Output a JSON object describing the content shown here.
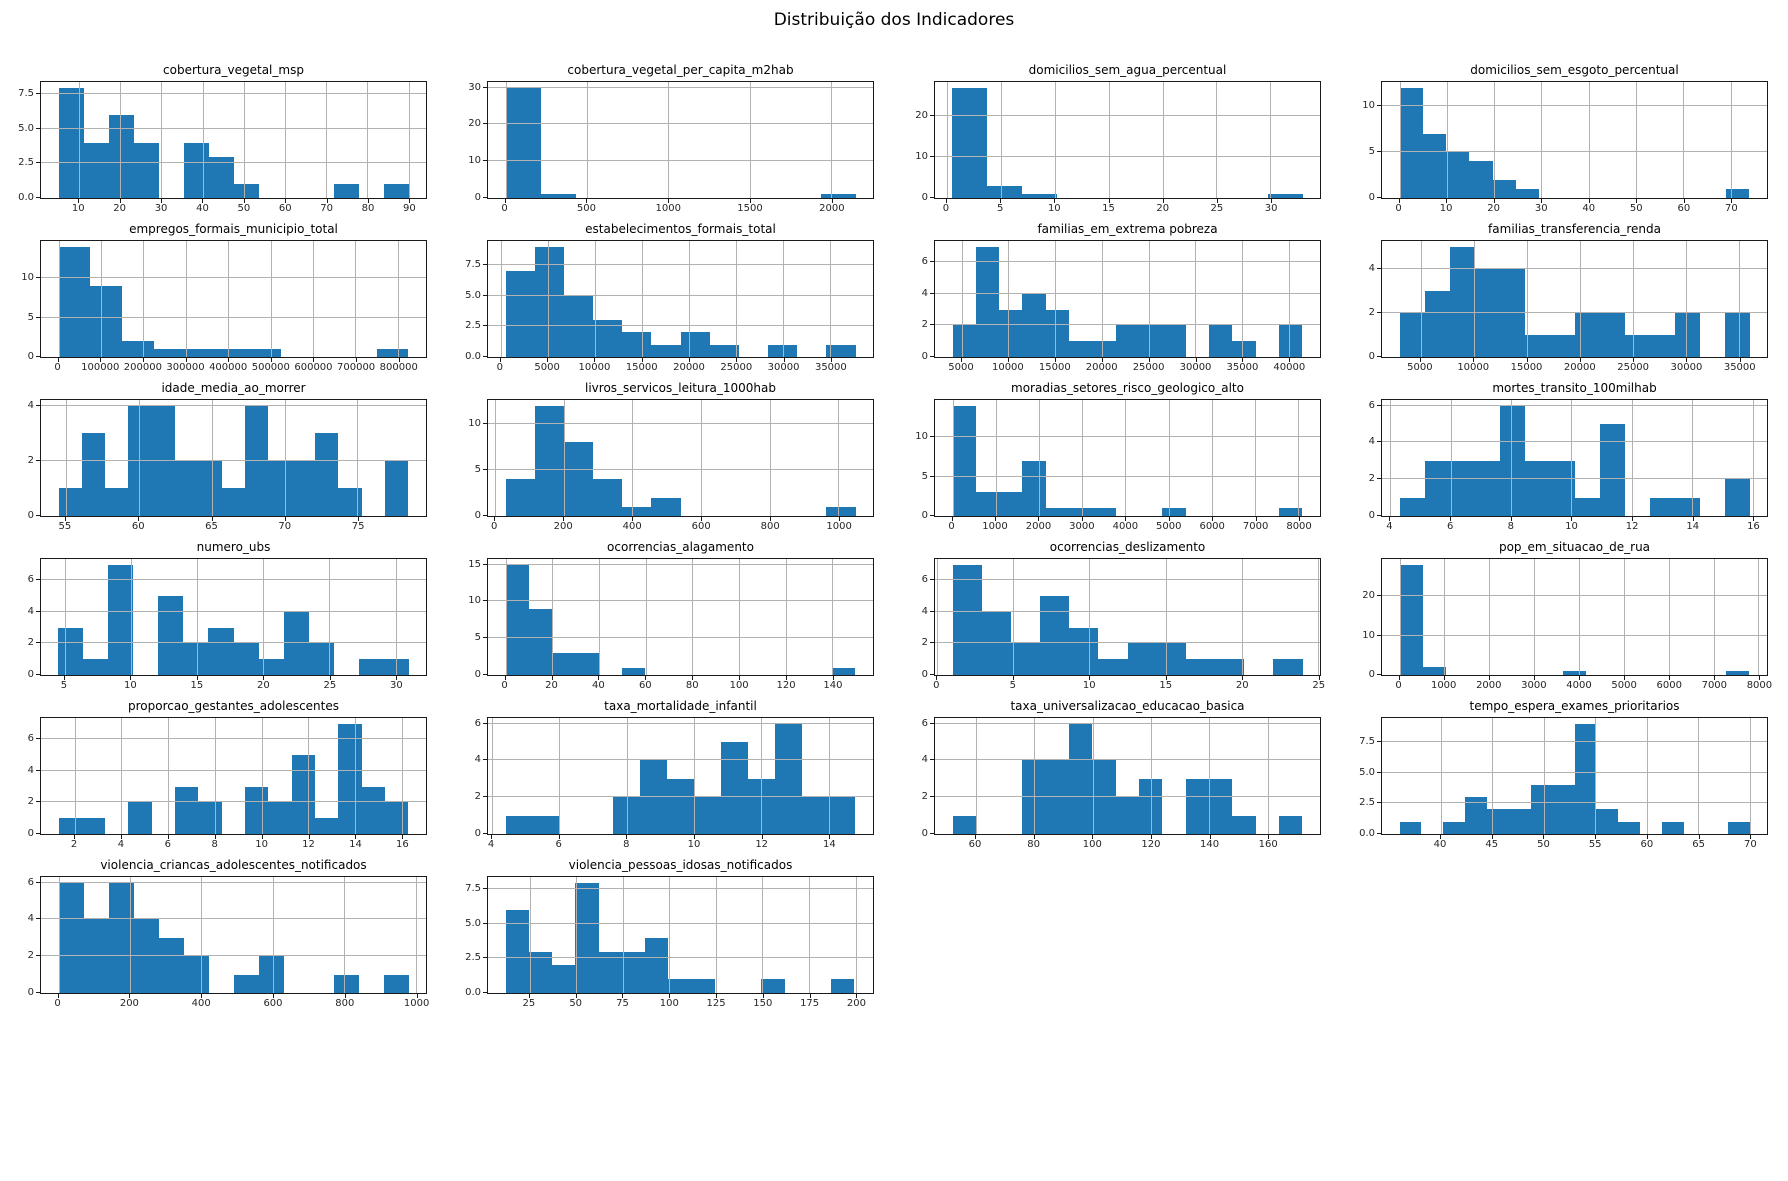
{
  "suptitle": "Distribuição dos Indicadores",
  "colors": {
    "bar": "#1f77b4",
    "grid": "#b2b2b2",
    "spine": "#1a1a1a",
    "text": "#262626"
  },
  "chart_data": [
    {
      "type": "bar",
      "title": "cobertura_vegetal_msp",
      "heights": [
        8,
        4,
        6,
        4,
        0,
        4,
        3,
        1,
        0,
        0,
        0,
        1,
        0,
        1
      ],
      "bar_range": [
        5,
        90
      ],
      "xlim": [
        0.75,
        94.25
      ],
      "xticks": [
        10,
        20,
        30,
        40,
        50,
        60,
        70,
        80,
        90
      ],
      "ylim": [
        0,
        8.4
      ],
      "yticks": [
        0,
        2.5,
        5,
        7.5
      ],
      "ytick_labels": [
        "0.0",
        "2.5",
        "5.0",
        "7.5"
      ]
    },
    {
      "type": "bar",
      "title": "cobertura_vegetal_per_capita_m2hab",
      "heights": [
        30,
        1,
        0,
        0,
        0,
        0,
        0,
        0,
        0,
        1
      ],
      "bar_range": [
        0,
        2150
      ],
      "xlim": [
        -107.5,
        2257.5
      ],
      "xticks": [
        0,
        500,
        1000,
        1500,
        2000
      ],
      "ylim": [
        0,
        31.5
      ],
      "yticks": [
        0,
        10,
        20,
        30
      ],
      "ytick_labels": [
        "0",
        "10",
        "20",
        "30"
      ]
    },
    {
      "type": "bar",
      "title": "domicilios_sem_agua_percentual",
      "heights": [
        27,
        3,
        1,
        0,
        0,
        0,
        0,
        0,
        0,
        1
      ],
      "bar_range": [
        0.5,
        33
      ],
      "xlim": [
        -1.1,
        34.6
      ],
      "xticks": [
        0,
        5,
        10,
        15,
        20,
        25,
        30
      ],
      "ylim": [
        0,
        28.35
      ],
      "yticks": [
        0,
        10,
        20
      ],
      "ytick_labels": [
        "0",
        "10",
        "20"
      ]
    },
    {
      "type": "bar",
      "title": "domicilios_sem_esgoto_percentual",
      "heights": [
        12,
        7,
        5,
        4,
        2,
        1,
        0,
        0,
        0,
        0,
        0,
        0,
        0,
        0,
        1
      ],
      "bar_range": [
        0,
        74
      ],
      "xlim": [
        -3.7,
        77.7
      ],
      "xticks": [
        0,
        10,
        20,
        30,
        40,
        50,
        60,
        70
      ],
      "ylim": [
        0,
        12.6
      ],
      "yticks": [
        0,
        5,
        10
      ],
      "ytick_labels": [
        "0",
        "5",
        "10"
      ]
    },
    {
      "type": "bar",
      "title": "empregos_formais_municipio_total",
      "heights": [
        14,
        9,
        2,
        1,
        1,
        1,
        1,
        0,
        0,
        0,
        1
      ],
      "bar_range": [
        0,
        825000
      ],
      "xlim": [
        -41250,
        866250
      ],
      "xticks": [
        0,
        100000,
        200000,
        300000,
        400000,
        500000,
        600000,
        700000,
        800000
      ],
      "ylim": [
        0,
        14.7
      ],
      "yticks": [
        0,
        5,
        10
      ],
      "ytick_labels": [
        "0",
        "5",
        "10"
      ]
    },
    {
      "type": "bar",
      "title": "estabelecimentos_formais_total",
      "heights": [
        7,
        9,
        5,
        3,
        2,
        1,
        2,
        1,
        0,
        1,
        0,
        1
      ],
      "bar_range": [
        500,
        37700
      ],
      "xlim": [
        -1360,
        39560
      ],
      "xticks": [
        0,
        5000,
        10000,
        15000,
        20000,
        25000,
        30000,
        35000
      ],
      "ylim": [
        0,
        9.45
      ],
      "yticks": [
        0,
        2.5,
        5,
        7.5
      ],
      "ytick_labels": [
        "0.0",
        "2.5",
        "5.0",
        "7.5"
      ]
    },
    {
      "type": "bar",
      "title": "familias_em_extrema pobreza",
      "heights": [
        2,
        7,
        3,
        4,
        3,
        1,
        1,
        2,
        2,
        2,
        0,
        2,
        1,
        0,
        2
      ],
      "bar_range": [
        4000,
        41500
      ],
      "xlim": [
        2125,
        43375
      ],
      "xticks": [
        5000,
        10000,
        15000,
        20000,
        25000,
        30000,
        35000,
        40000
      ],
      "ylim": [
        0,
        7.35
      ],
      "yticks": [
        0,
        2,
        4,
        6
      ],
      "ytick_labels": [
        "0",
        "2",
        "4",
        "6"
      ]
    },
    {
      "type": "bar",
      "title": "familias_transferencia_renda",
      "heights": [
        2,
        3,
        5,
        4,
        4,
        1,
        1,
        2,
        2,
        1,
        1,
        2,
        0,
        2
      ],
      "bar_range": [
        3000,
        36000
      ],
      "xlim": [
        1350,
        37650
      ],
      "xticks": [
        5000,
        10000,
        15000,
        20000,
        25000,
        30000,
        35000
      ],
      "ylim": [
        0,
        5.25
      ],
      "yticks": [
        0,
        2,
        4
      ],
      "ytick_labels": [
        "0",
        "2",
        "4"
      ]
    },
    {
      "type": "bar",
      "title": "idade_media_ao_morrer",
      "heights": [
        1,
        3,
        1,
        4,
        4,
        2,
        2,
        1,
        4,
        2,
        2,
        3,
        1,
        0,
        2
      ],
      "bar_range": [
        54.5,
        78.5
      ],
      "xlim": [
        53.3,
        79.7
      ],
      "xticks": [
        55,
        60,
        65,
        70,
        75
      ],
      "ylim": [
        0,
        4.2
      ],
      "yticks": [
        0,
        2,
        4
      ],
      "ytick_labels": [
        "0",
        "2",
        "4"
      ]
    },
    {
      "type": "bar",
      "title": "livros_servicos_leitura_1000hab",
      "heights": [
        4,
        12,
        8,
        4,
        1,
        2,
        0,
        0,
        0,
        0,
        0,
        1
      ],
      "bar_range": [
        30,
        1050
      ],
      "xlim": [
        -21,
        1101
      ],
      "xticks": [
        0,
        200,
        400,
        600,
        800,
        1000
      ],
      "ylim": [
        0,
        12.6
      ],
      "yticks": [
        0,
        5,
        10
      ],
      "ytick_labels": [
        "0",
        "5",
        "10"
      ]
    },
    {
      "type": "bar",
      "title": "moradias_setores_risco_geologico_alto",
      "heights": [
        14,
        3,
        3,
        7,
        1,
        1,
        1,
        0,
        0,
        1,
        0,
        0,
        0,
        0,
        1
      ],
      "bar_range": [
        0,
        8100
      ],
      "xlim": [
        -405,
        8505
      ],
      "xticks": [
        0,
        1000,
        2000,
        3000,
        4000,
        5000,
        6000,
        7000,
        8000
      ],
      "ylim": [
        0,
        14.7
      ],
      "yticks": [
        0,
        5,
        10
      ],
      "ytick_labels": [
        "0",
        "5",
        "10"
      ]
    },
    {
      "type": "bar",
      "title": "mortes_transito_100milhab",
      "heights": [
        1,
        3,
        3,
        3,
        6,
        3,
        3,
        1,
        5,
        0,
        1,
        1,
        0,
        2
      ],
      "bar_range": [
        4.3,
        15.9
      ],
      "xlim": [
        3.72,
        16.48
      ],
      "xticks": [
        4,
        6,
        8,
        10,
        12,
        14,
        16
      ],
      "ylim": [
        0,
        6.3
      ],
      "yticks": [
        0,
        2,
        4,
        6
      ],
      "ytick_labels": [
        "0",
        "2",
        "4",
        "6"
      ]
    },
    {
      "type": "bar",
      "title": "numero_ubs",
      "heights": [
        3,
        1,
        7,
        0,
        5,
        2,
        3,
        2,
        1,
        4,
        2,
        0,
        1,
        1
      ],
      "bar_range": [
        4.5,
        31
      ],
      "xlim": [
        3.2,
        32.3
      ],
      "xticks": [
        5,
        10,
        15,
        20,
        25,
        30
      ],
      "ylim": [
        0,
        7.35
      ],
      "yticks": [
        0,
        2,
        4,
        6
      ],
      "ytick_labels": [
        "0",
        "2",
        "4",
        "6"
      ]
    },
    {
      "type": "bar",
      "title": "ocorrencias_alagamento",
      "heights": [
        15,
        9,
        3,
        3,
        0,
        1,
        0,
        0,
        0,
        0,
        0,
        0,
        0,
        0,
        1
      ],
      "bar_range": [
        0,
        150
      ],
      "xlim": [
        -7.5,
        157.5
      ],
      "xticks": [
        0,
        20,
        40,
        60,
        80,
        100,
        120,
        140
      ],
      "ylim": [
        0,
        15.75
      ],
      "yticks": [
        0,
        5,
        10,
        15
      ],
      "ytick_labels": [
        "0",
        "5",
        "10",
        "15"
      ]
    },
    {
      "type": "bar",
      "title": "ocorrencias_deslizamento",
      "heights": [
        7,
        4,
        2,
        5,
        3,
        1,
        2,
        2,
        1,
        1,
        0,
        1
      ],
      "bar_range": [
        1,
        24
      ],
      "xlim": [
        -0.15,
        25.15
      ],
      "xticks": [
        0,
        5,
        10,
        15,
        20,
        25
      ],
      "ylim": [
        0,
        7.35
      ],
      "yticks": [
        0,
        2,
        4,
        6
      ],
      "ytick_labels": [
        "0",
        "2",
        "4",
        "6"
      ]
    },
    {
      "type": "bar",
      "title": "pop_em_situacao_de_rua",
      "heights": [
        28,
        2,
        0,
        0,
        0,
        0,
        0,
        1,
        0,
        0,
        0,
        0,
        0,
        0,
        1
      ],
      "bar_range": [
        0,
        7800
      ],
      "xlim": [
        -390,
        8190
      ],
      "xticks": [
        0,
        1000,
        2000,
        3000,
        4000,
        5000,
        6000,
        7000,
        8000
      ],
      "ylim": [
        0,
        29.4
      ],
      "yticks": [
        0,
        10,
        20
      ],
      "ytick_labels": [
        "0",
        "10",
        "20"
      ]
    },
    {
      "type": "bar",
      "title": "proporcao_gestantes_adolescentes",
      "heights": [
        1,
        1,
        0,
        2,
        0,
        3,
        2,
        0,
        3,
        2,
        5,
        1,
        7,
        3,
        2
      ],
      "bar_range": [
        1.3,
        16.3
      ],
      "xlim": [
        0.55,
        17.05
      ],
      "xticks": [
        2,
        4,
        6,
        8,
        10,
        12,
        14,
        16
      ],
      "ylim": [
        0,
        7.35
      ],
      "yticks": [
        0,
        2,
        4,
        6
      ],
      "ytick_labels": [
        "0",
        "2",
        "4",
        "6"
      ]
    },
    {
      "type": "bar",
      "title": "taxa_mortalidade_infantil",
      "heights": [
        1,
        1,
        0,
        0,
        2,
        4,
        3,
        2,
        5,
        3,
        6,
        2,
        2
      ],
      "bar_range": [
        4.4,
        14.8
      ],
      "xlim": [
        3.88,
        15.32
      ],
      "xticks": [
        4,
        6,
        8,
        10,
        12,
        14
      ],
      "ylim": [
        0,
        6.3
      ],
      "yticks": [
        0,
        2,
        4,
        6
      ],
      "ytick_labels": [
        "0",
        "2",
        "4",
        "6"
      ]
    },
    {
      "type": "bar",
      "title": "taxa_universalizacao_educacao_basica",
      "heights": [
        1,
        0,
        0,
        4,
        4,
        6,
        4,
        2,
        3,
        0,
        3,
        3,
        1,
        0,
        1
      ],
      "bar_range": [
        52,
        172
      ],
      "xlim": [
        46,
        178
      ],
      "xticks": [
        60,
        80,
        100,
        120,
        140,
        160
      ],
      "ylim": [
        0,
        6.3
      ],
      "yticks": [
        0,
        2,
        4,
        6
      ],
      "ytick_labels": [
        "0",
        "2",
        "4",
        "6"
      ]
    },
    {
      "type": "bar",
      "title": "tempo_espera_exames_prioritarios",
      "heights": [
        1,
        0,
        1,
        3,
        2,
        2,
        4,
        4,
        9,
        2,
        1,
        0,
        1,
        0,
        0,
        1
      ],
      "bar_range": [
        36,
        70
      ],
      "xlim": [
        34.3,
        71.7
      ],
      "xticks": [
        40,
        45,
        50,
        55,
        60,
        65,
        70
      ],
      "ylim": [
        0,
        9.45
      ],
      "yticks": [
        0,
        2.5,
        5,
        7.5
      ],
      "ytick_labels": [
        "0.0",
        "2.5",
        "5.0",
        "7.5"
      ]
    },
    {
      "type": "bar",
      "title": "violencia_criancas_adolescentes_notificados",
      "heights": [
        6,
        4,
        6,
        4,
        3,
        2,
        0,
        1,
        2,
        0,
        0,
        1,
        0,
        1
      ],
      "bar_range": [
        0,
        980
      ],
      "xlim": [
        -49,
        1029
      ],
      "xticks": [
        0,
        200,
        400,
        600,
        800,
        1000
      ],
      "ylim": [
        0,
        6.3
      ],
      "yticks": [
        0,
        2,
        4,
        6
      ],
      "ytick_labels": [
        "0",
        "2",
        "4",
        "6"
      ]
    },
    {
      "type": "bar",
      "title": "violencia_pessoas_idosas_notificados",
      "heights": [
        6,
        3,
        2,
        8,
        3,
        3,
        4,
        1,
        1,
        0,
        0,
        1,
        0,
        0,
        1
      ],
      "bar_range": [
        12,
        199.5
      ],
      "xlim": [
        2.6,
        209.4
      ],
      "xticks": [
        25,
        50,
        75,
        100,
        125,
        150,
        175,
        200
      ],
      "ylim": [
        0,
        8.4
      ],
      "yticks": [
        0,
        2.5,
        5,
        7.5
      ],
      "ytick_labels": [
        "0.0",
        "2.5",
        "5.0",
        "7.5"
      ]
    }
  ]
}
